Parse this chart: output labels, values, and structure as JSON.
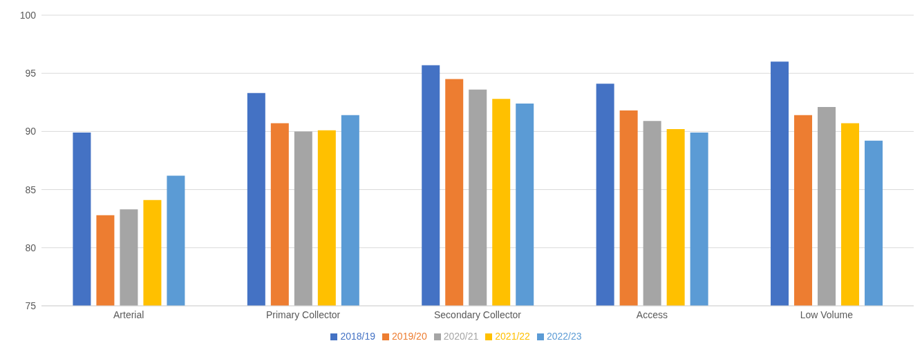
{
  "chart_data": {
    "type": "bar",
    "categories": [
      "Arterial",
      "Primary Collector",
      "Secondary Collector",
      "Access",
      "Low Volume"
    ],
    "series": [
      {
        "name": "2018/19",
        "color": "#4472c4",
        "values": [
          89.9,
          93.3,
          95.7,
          94.1,
          96.0
        ]
      },
      {
        "name": "2019/20",
        "color": "#ed7d31",
        "values": [
          82.8,
          90.7,
          94.5,
          91.8,
          91.4
        ]
      },
      {
        "name": "2020/21",
        "color": "#a5a5a5",
        "values": [
          83.3,
          90.0,
          93.6,
          90.9,
          92.1
        ]
      },
      {
        "name": "2021/22",
        "color": "#ffc000",
        "values": [
          84.1,
          90.1,
          92.8,
          90.2,
          90.7
        ]
      },
      {
        "name": "2022/23",
        "color": "#5b9bd5",
        "values": [
          86.2,
          91.4,
          92.4,
          89.9,
          89.2
        ]
      }
    ],
    "ylim": [
      75,
      100
    ],
    "yticks": [
      75,
      80,
      85,
      90,
      95,
      100
    ],
    "grid": "y",
    "legend": "bottom"
  }
}
